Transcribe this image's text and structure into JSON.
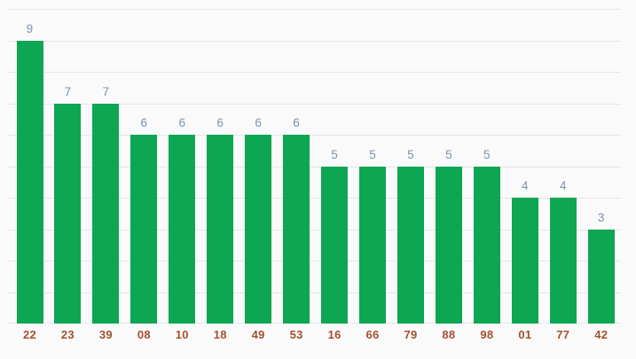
{
  "chart_data": {
    "type": "bar",
    "title": "",
    "xlabel": "",
    "ylabel": "",
    "categories": [
      "22",
      "23",
      "39",
      "08",
      "10",
      "18",
      "49",
      "53",
      "16",
      "66",
      "79",
      "88",
      "98",
      "01",
      "77",
      "42"
    ],
    "values": [
      9,
      7,
      7,
      6,
      6,
      6,
      6,
      6,
      5,
      5,
      5,
      5,
      5,
      4,
      4,
      3
    ],
    "ylim": [
      0,
      10
    ],
    "gridline_interval": 1,
    "grid": true,
    "legend_position": "none",
    "value_labels_shown": true,
    "colors": {
      "bar": "#0da652",
      "value_label": "#7b93ae",
      "category_label": "#a3502e",
      "gridline": "#e6e6e6",
      "background": "#fafafa"
    }
  }
}
